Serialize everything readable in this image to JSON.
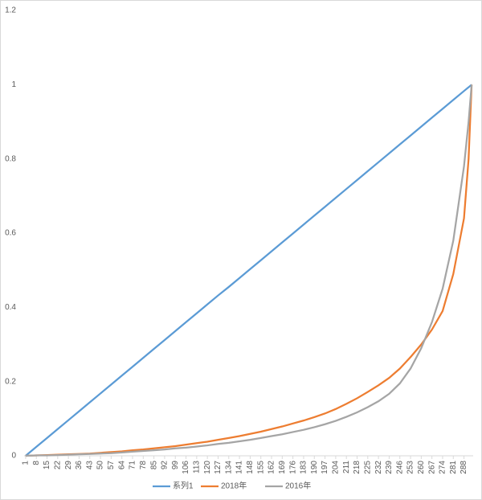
{
  "chart_data": {
    "type": "line",
    "x": [
      1,
      8,
      15,
      22,
      29,
      36,
      43,
      50,
      57,
      64,
      71,
      78,
      85,
      92,
      99,
      106,
      113,
      120,
      127,
      134,
      141,
      148,
      155,
      162,
      169,
      176,
      183,
      190,
      197,
      204,
      211,
      218,
      225,
      232,
      239,
      246,
      253,
      260,
      267,
      274,
      281,
      288,
      291,
      293
    ],
    "xlim": [
      0,
      294
    ],
    "xticks": [
      1,
      8,
      15,
      22,
      29,
      36,
      43,
      50,
      57,
      64,
      71,
      78,
      85,
      92,
      99,
      106,
      113,
      120,
      127,
      134,
      141,
      148,
      155,
      162,
      169,
      176,
      183,
      190,
      197,
      204,
      211,
      218,
      225,
      232,
      239,
      246,
      253,
      260,
      267,
      274,
      281,
      288
    ],
    "ylim": [
      0,
      1.2
    ],
    "yticks": [
      0,
      0.2,
      0.4,
      0.6,
      0.8,
      1,
      1.2
    ],
    "legend": "bottom",
    "series": [
      {
        "name": "系列1",
        "color": "#5b9bd5",
        "values": [
          0,
          0.024,
          0.048,
          0.072,
          0.096,
          0.12,
          0.144,
          0.168,
          0.192,
          0.216,
          0.24,
          0.264,
          0.288,
          0.312,
          0.336,
          0.36,
          0.384,
          0.408,
          0.432,
          0.455,
          0.479,
          0.503,
          0.527,
          0.551,
          0.575,
          0.599,
          0.623,
          0.647,
          0.671,
          0.695,
          0.719,
          0.743,
          0.767,
          0.791,
          0.815,
          0.839,
          0.863,
          0.887,
          0.911,
          0.935,
          0.959,
          0.983,
          0.993,
          1
        ]
      },
      {
        "name": "2018年",
        "color": "#ed7d31",
        "values": [
          0,
          0.001,
          0.002,
          0.003,
          0.004,
          0.005,
          0.006,
          0.008,
          0.01,
          0.012,
          0.015,
          0.017,
          0.02,
          0.023,
          0.026,
          0.03,
          0.034,
          0.038,
          0.043,
          0.048,
          0.053,
          0.059,
          0.065,
          0.072,
          0.079,
          0.087,
          0.095,
          0.104,
          0.114,
          0.126,
          0.14,
          0.155,
          0.172,
          0.19,
          0.21,
          0.235,
          0.266,
          0.3,
          0.34,
          0.39,
          0.49,
          0.64,
          0.8,
          1
        ]
      },
      {
        "name": "2016年",
        "color": "#a5a5a5",
        "values": [
          0,
          0.001,
          0.001,
          0.002,
          0.003,
          0.004,
          0.005,
          0.006,
          0.007,
          0.009,
          0.011,
          0.013,
          0.015,
          0.017,
          0.02,
          0.022,
          0.025,
          0.028,
          0.032,
          0.035,
          0.039,
          0.043,
          0.048,
          0.053,
          0.058,
          0.064,
          0.07,
          0.077,
          0.085,
          0.094,
          0.105,
          0.117,
          0.131,
          0.147,
          0.167,
          0.195,
          0.235,
          0.29,
          0.36,
          0.45,
          0.58,
          0.78,
          0.9,
          1
        ]
      }
    ]
  }
}
